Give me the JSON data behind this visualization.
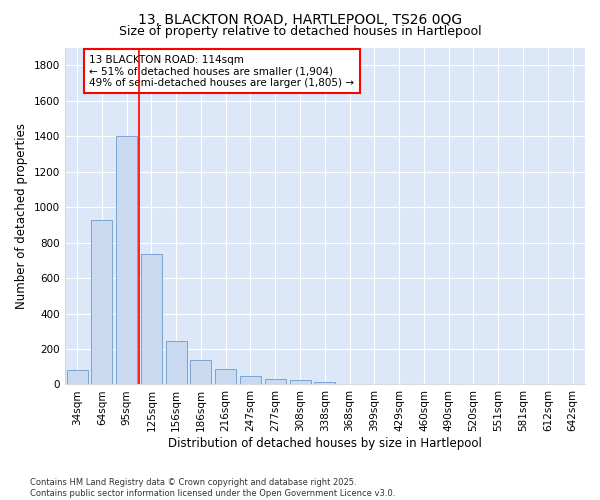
{
  "title1": "13, BLACKTON ROAD, HARTLEPOOL, TS26 0QG",
  "title2": "Size of property relative to detached houses in Hartlepool",
  "xlabel": "Distribution of detached houses by size in Hartlepool",
  "ylabel": "Number of detached properties",
  "categories": [
    "34sqm",
    "64sqm",
    "95sqm",
    "125sqm",
    "156sqm",
    "186sqm",
    "216sqm",
    "247sqm",
    "277sqm",
    "308sqm",
    "338sqm",
    "368sqm",
    "399sqm",
    "429sqm",
    "460sqm",
    "490sqm",
    "520sqm",
    "551sqm",
    "581sqm",
    "612sqm",
    "642sqm"
  ],
  "values": [
    80,
    925,
    1400,
    735,
    245,
    140,
    85,
    50,
    30,
    25,
    15,
    0,
    0,
    0,
    0,
    0,
    0,
    0,
    0,
    0,
    0
  ],
  "bar_color": "#c9d9f0",
  "bar_edge_color": "#7aa4d4",
  "vline_color": "red",
  "vline_x_index": 3,
  "annotation_text": "13 BLACKTON ROAD: 114sqm\n← 51% of detached houses are smaller (1,904)\n49% of semi-detached houses are larger (1,805) →",
  "annotation_box_color": "white",
  "annotation_box_edge": "red",
  "ylim": [
    0,
    1900
  ],
  "yticks": [
    0,
    200,
    400,
    600,
    800,
    1000,
    1200,
    1400,
    1600,
    1800
  ],
  "bg_color": "#dce8f8",
  "grid_color": "white",
  "footer": "Contains HM Land Registry data © Crown copyright and database right 2025.\nContains public sector information licensed under the Open Government Licence v3.0.",
  "title1_fontsize": 10,
  "title2_fontsize": 9,
  "xlabel_fontsize": 8.5,
  "ylabel_fontsize": 8.5,
  "tick_fontsize": 7.5,
  "annotation_fontsize": 7.5,
  "footer_fontsize": 6
}
